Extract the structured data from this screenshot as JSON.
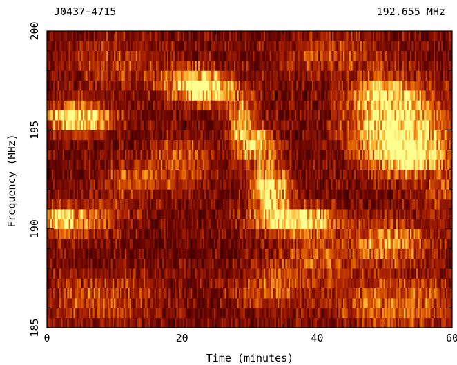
{
  "chart_data": {
    "type": "heatmap",
    "title_left": "J0437−4715",
    "title_right": "192.655 MHz",
    "xlabel": "Time (minutes)",
    "ylabel": "Frequency (MHz)",
    "xlim": [
      0,
      60
    ],
    "ylim": [
      185,
      200
    ],
    "x_ticks": [
      0,
      20,
      40,
      60
    ],
    "x_tick_labels": [
      "0",
      "20",
      "40",
      "60"
    ],
    "y_ticks": [
      185,
      190,
      195,
      200
    ],
    "y_tick_labels": [
      "185",
      "190",
      "195",
      "200"
    ],
    "colormap": [
      "#000000",
      "#5a0000",
      "#a82000",
      "#e06000",
      "#ffb030",
      "#ffff90"
    ],
    "scintles": [
      {
        "t": 4.5,
        "f": 195.6,
        "dt": 3.2,
        "df": 0.5,
        "amp": 1.0
      },
      {
        "t": 2.0,
        "f": 190.4,
        "dt": 1.8,
        "df": 0.4,
        "amp": 0.7
      },
      {
        "t": 6.0,
        "f": 190.6,
        "dt": 4.0,
        "df": 0.7,
        "amp": 0.35
      },
      {
        "t": 22.0,
        "f": 197.4,
        "dt": 3.5,
        "df": 0.5,
        "amp": 0.85
      },
      {
        "t": 24.0,
        "f": 196.8,
        "dt": 2.5,
        "df": 0.4,
        "amp": 0.6
      },
      {
        "t": 13.0,
        "f": 192.5,
        "dt": 3.0,
        "df": 0.6,
        "amp": 0.35
      },
      {
        "t": 20.0,
        "f": 193.5,
        "dt": 3.0,
        "df": 0.8,
        "amp": 0.35
      },
      {
        "t": 29.0,
        "f": 195.5,
        "dt": 1.5,
        "df": 0.8,
        "amp": 0.6
      },
      {
        "t": 31.0,
        "f": 194.2,
        "dt": 2.0,
        "df": 0.6,
        "amp": 0.7
      },
      {
        "t": 33.0,
        "f": 192.0,
        "dt": 1.8,
        "df": 0.8,
        "amp": 0.9
      },
      {
        "t": 36.0,
        "f": 190.5,
        "dt": 4.0,
        "df": 0.5,
        "amp": 0.75
      },
      {
        "t": 39.0,
        "f": 190.4,
        "dt": 3.0,
        "df": 0.4,
        "amp": 0.45
      },
      {
        "t": 52.0,
        "f": 195.0,
        "dt": 4.5,
        "df": 1.2,
        "amp": 1.0
      },
      {
        "t": 50.0,
        "f": 196.8,
        "dt": 3.5,
        "df": 0.6,
        "amp": 0.6
      },
      {
        "t": 54.0,
        "f": 193.6,
        "dt": 3.0,
        "df": 0.5,
        "amp": 0.65
      },
      {
        "t": 51.0,
        "f": 189.3,
        "dt": 4.0,
        "df": 0.7,
        "amp": 0.55
      },
      {
        "t": 40.0,
        "f": 188.5,
        "dt": 4.0,
        "df": 0.8,
        "amp": 0.3
      },
      {
        "t": 52.0,
        "f": 186.2,
        "dt": 6.0,
        "df": 0.9,
        "amp": 0.45
      },
      {
        "t": 8.0,
        "f": 186.5,
        "dt": 6.0,
        "df": 0.8,
        "amp": 0.3
      },
      {
        "t": 33.0,
        "f": 187.0,
        "dt": 4.0,
        "df": 0.8,
        "amp": 0.3
      },
      {
        "t": 10.0,
        "f": 198.5,
        "dt": 5.0,
        "df": 0.8,
        "amp": 0.25
      },
      {
        "t": 42.0,
        "f": 198.8,
        "dt": 6.0,
        "df": 0.7,
        "amp": 0.25
      },
      {
        "t": 58.5,
        "f": 192.0,
        "dt": 2.5,
        "df": 1.0,
        "amp": 0.25
      }
    ]
  }
}
